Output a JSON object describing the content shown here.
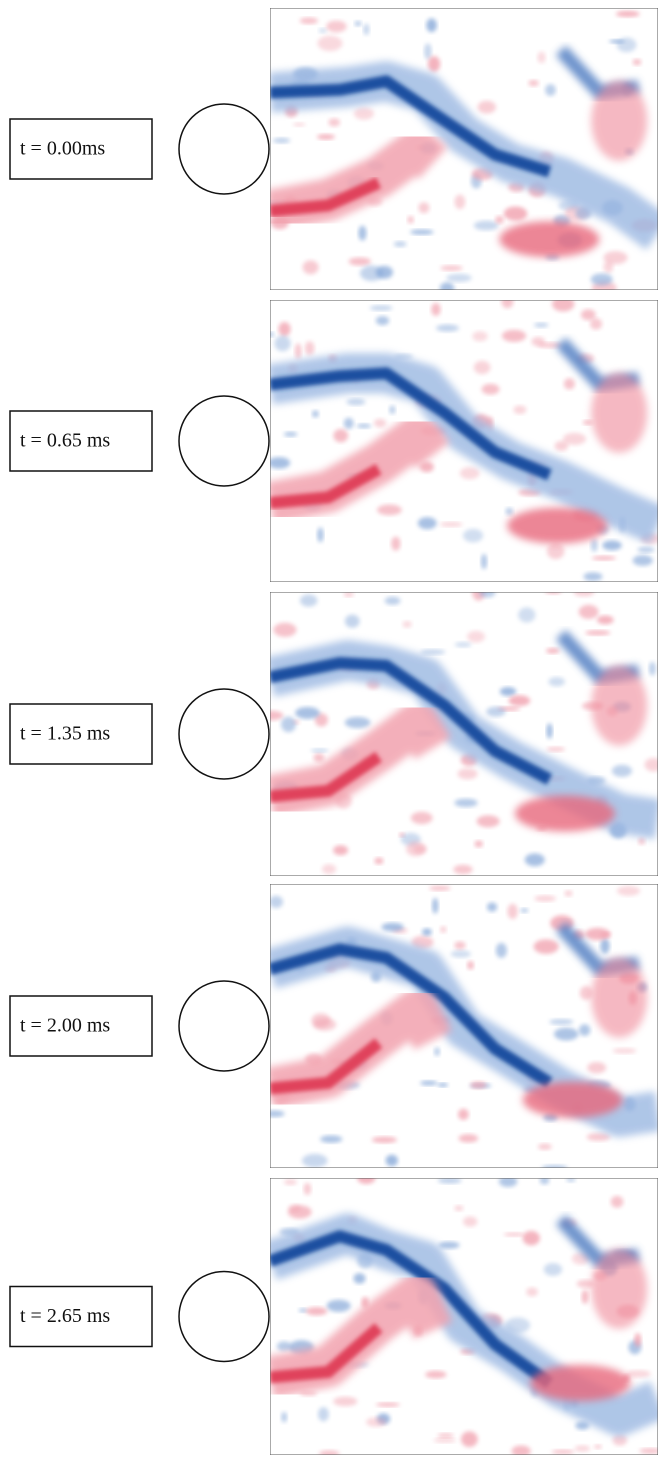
{
  "panels": [
    {
      "label": "t = 0.00ms"
    },
    {
      "label": "t = 0.65 ms"
    },
    {
      "label": "t = 1.35 ms"
    },
    {
      "label": "t = 2.00 ms"
    },
    {
      "label": "t = 2.65 ms"
    }
  ]
}
